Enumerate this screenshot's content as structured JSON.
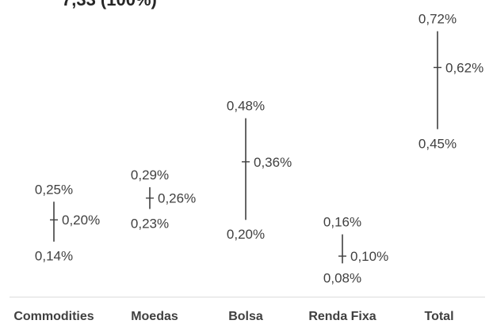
{
  "chart_data": {
    "type": "range",
    "title_fragment": "7,33 (100%)",
    "categories": [
      "Commodities",
      "Moedas",
      "Bolsa",
      "Renda Fixa",
      "Total"
    ],
    "series": [
      {
        "low": 0.14,
        "mid": 0.2,
        "high": 0.25,
        "low_label": "0,14%",
        "mid_label": "0,20%",
        "high_label": "0,25%"
      },
      {
        "low": 0.23,
        "mid": 0.26,
        "high": 0.29,
        "low_label": "0,23%",
        "mid_label": "0,26%",
        "high_label": "0,29%"
      },
      {
        "low": 0.2,
        "mid": 0.36,
        "high": 0.48,
        "low_label": "0,20%",
        "mid_label": "0,36%",
        "high_label": "0,48%"
      },
      {
        "low": 0.08,
        "mid": 0.1,
        "high": 0.16,
        "low_label": "0,08%",
        "mid_label": "0,10%",
        "high_label": "0,16%"
      },
      {
        "low": 0.45,
        "mid": 0.62,
        "high": 0.72,
        "low_label": "0,45%",
        "mid_label": "0,62%",
        "high_label": "0,72%"
      }
    ],
    "colors": {
      "line": "#404040",
      "text": "#404040",
      "axis": "#d9d9d9"
    }
  }
}
